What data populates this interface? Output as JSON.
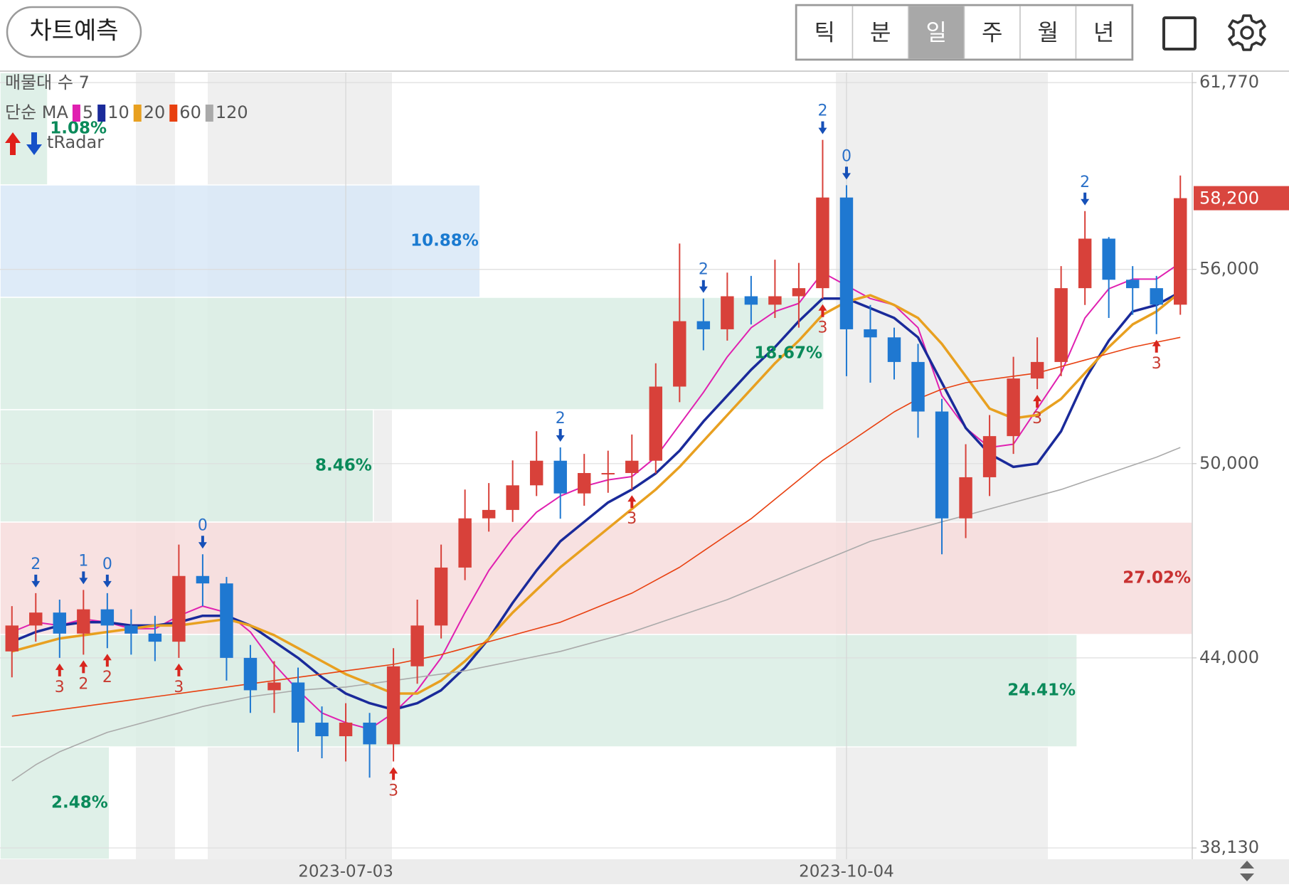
{
  "toolbar": {
    "predict_button": "차트예측",
    "periods": [
      "틱",
      "분",
      "일",
      "주",
      "월",
      "년"
    ],
    "selected": 2
  },
  "chart_data": {
    "type": "candlestick",
    "zone_count_label": "매물대 수 7",
    "ma_label": "단순 MA",
    "indicator_label": "tRadar",
    "categories": [
      null,
      null,
      null,
      null,
      null,
      null,
      null,
      null,
      null,
      null,
      null,
      null,
      null,
      null,
      "2023-07-03",
      null,
      null,
      null,
      null,
      null,
      null,
      null,
      null,
      null,
      null,
      null,
      null,
      null,
      null,
      null,
      null,
      null,
      null,
      null,
      null,
      "2023-10-04",
      null,
      null,
      null,
      null,
      null,
      null,
      null,
      null,
      null,
      null,
      null,
      null,
      null,
      null
    ],
    "open": [
      44200,
      45000,
      45400,
      44750,
      45500,
      45000,
      44750,
      44500,
      46530,
      46300,
      44000,
      43000,
      43240,
      42000,
      41580,
      42000,
      41330,
      43740,
      45000,
      46790,
      48310,
      48570,
      49330,
      50090,
      49080,
      49710,
      49710,
      50090,
      52380,
      54400,
      54150,
      55170,
      54910,
      55170,
      55420,
      58220,
      54150,
      53900,
      53140,
      51610,
      48310,
      49580,
      50850,
      52630,
      53140,
      55420,
      56950,
      55680,
      55420,
      54910
    ],
    "high": [
      45600,
      46000,
      45800,
      46100,
      46000,
      45500,
      45300,
      47500,
      47200,
      46500,
      44400,
      43900,
      43700,
      42500,
      42600,
      42300,
      44300,
      45800,
      47500,
      49200,
      49400,
      50100,
      51000,
      50500,
      50300,
      50400,
      50900,
      53100,
      56800,
      55100,
      55900,
      55800,
      56300,
      56200,
      60000,
      58600,
      54900,
      54200,
      53700,
      52000,
      50600,
      51500,
      53300,
      53900,
      56100,
      57800,
      57000,
      56100,
      55800,
      58900
    ],
    "low": [
      43400,
      44500,
      44000,
      44100,
      44300,
      44100,
      43900,
      44000,
      45600,
      43300,
      42300,
      42300,
      41100,
      40900,
      40800,
      40300,
      40800,
      43200,
      44600,
      46400,
      47900,
      48200,
      49000,
      48300,
      48700,
      49100,
      49200,
      49700,
      51900,
      53500,
      53800,
      54300,
      54500,
      54200,
      55100,
      52700,
      52500,
      52600,
      50800,
      47200,
      47700,
      49000,
      50300,
      52300,
      52700,
      54900,
      54500,
      54600,
      54000,
      54600
    ],
    "close": [
      45000,
      45400,
      44750,
      45500,
      45000,
      44750,
      44500,
      46530,
      46300,
      44000,
      43000,
      43240,
      42000,
      41580,
      42000,
      41330,
      43740,
      45000,
      46790,
      48310,
      48570,
      49330,
      50090,
      49080,
      49710,
      49710,
      50090,
      52380,
      54400,
      54150,
      55170,
      54910,
      55170,
      55420,
      58220,
      54150,
      53900,
      53140,
      51610,
      48310,
      49580,
      50850,
      52630,
      53140,
      55420,
      56950,
      55680,
      55420,
      54910,
      58200
    ],
    "up_color": "#d8413a",
    "down_color": "#1f78d1",
    "series": [
      {
        "name": "5",
        "color": "#e020b0",
        "width": 2,
        "values": [
          44800,
          45100,
          45000,
          45200,
          45100,
          44900,
          44900,
          45300,
          45600,
          45400,
          44800,
          43800,
          43000,
          42300,
          42000,
          41800,
          42300,
          43000,
          44000,
          45400,
          46700,
          47700,
          48500,
          49000,
          49300,
          49500,
          49600,
          50200,
          51200,
          52200,
          53300,
          54200,
          54700,
          54950,
          55900,
          55500,
          55100,
          54900,
          54200,
          52100,
          51100,
          50500,
          50600,
          51700,
          52800,
          54500,
          55400,
          55700,
          55700,
          56200
        ]
      },
      {
        "name": "10",
        "color": "#1a2a9a",
        "width": 3.5,
        "values": [
          44500,
          44800,
          45000,
          45100,
          45100,
          45000,
          45000,
          45100,
          45300,
          45300,
          45000,
          44500,
          44000,
          43400,
          42900,
          42600,
          42400,
          42600,
          43000,
          43700,
          44600,
          45700,
          46700,
          47600,
          48200,
          48800,
          49200,
          49700,
          50400,
          51300,
          52100,
          52900,
          53600,
          54400,
          55100,
          55100,
          54800,
          54500,
          53900,
          52500,
          51100,
          50300,
          49900,
          50000,
          51000,
          52600,
          53800,
          54700,
          54900,
          55300
        ]
      },
      {
        "name": "20",
        "color": "#e8a020",
        "width": 3.5,
        "values": [
          44200,
          44400,
          44600,
          44700,
          44800,
          44900,
          45000,
          45000,
          45100,
          45200,
          45000,
          44700,
          44300,
          43900,
          43500,
          43200,
          42900,
          42900,
          43300,
          43900,
          44600,
          45400,
          46100,
          46800,
          47400,
          48000,
          48600,
          49200,
          49900,
          50700,
          51500,
          52300,
          53100,
          53800,
          54600,
          55000,
          55200,
          54900,
          54500,
          53700,
          52700,
          51700,
          51400,
          51500,
          52000,
          52800,
          53600,
          54300,
          54700,
          55300
        ]
      },
      {
        "name": "60",
        "color": "#e84010",
        "width": 1.6,
        "values": [
          42200,
          42300,
          42400,
          42500,
          42600,
          42700,
          42800,
          42900,
          43000,
          43100,
          43200,
          43300,
          43400,
          43500,
          43600,
          43700,
          43800,
          43950,
          44100,
          44300,
          44500,
          44700,
          44900,
          45100,
          45400,
          45700,
          46000,
          46400,
          46800,
          47300,
          47800,
          48300,
          48900,
          49500,
          50100,
          50600,
          51100,
          51600,
          52000,
          52300,
          52500,
          52600,
          52700,
          52800,
          53000,
          53200,
          53400,
          53600,
          53750,
          53900
        ]
      },
      {
        "name": "120",
        "color": "#aaaaaa",
        "width": 1.6,
        "values": [
          40200,
          40700,
          41100,
          41400,
          41700,
          41900,
          42100,
          42300,
          42500,
          42650,
          42800,
          42900,
          43000,
          43050,
          43100,
          43200,
          43300,
          43400,
          43500,
          43600,
          43750,
          43900,
          44050,
          44200,
          44400,
          44600,
          44800,
          45050,
          45300,
          45550,
          45800,
          46100,
          46400,
          46700,
          47000,
          47300,
          47600,
          47800,
          48000,
          48200,
          48400,
          48600,
          48800,
          49000,
          49200,
          49450,
          49700,
          49950,
          50200,
          50500
        ]
      }
    ],
    "zones": {
      "values": [
        1.08,
        10.88,
        18.67,
        8.46,
        27.02,
        24.41,
        2.48
      ],
      "value_labels": [
        "1.08%",
        "10.88%",
        "18.67%",
        "8.46%",
        "27.02%",
        "24.41%",
        "2.48%"
      ],
      "colors": [
        "#d9ede4",
        "#d8e7f7",
        "#d9ede4",
        "#d9ede4",
        "#f7dcdc",
        "#d9ede4",
        "#d9ede4"
      ],
      "label_colors": [
        "#0a8a5a",
        "#1a7ad0",
        "#0a8a5a",
        "#0a8a5a",
        "#c83030",
        "#0a8a5a",
        "#0a8a5a"
      ]
    },
    "sell_signals": [
      null,
      "2",
      null,
      "1",
      "0",
      null,
      null,
      null,
      "0",
      null,
      null,
      null,
      null,
      null,
      null,
      null,
      null,
      null,
      null,
      null,
      null,
      null,
      null,
      "2",
      null,
      null,
      null,
      null,
      null,
      "2",
      null,
      null,
      null,
      null,
      "2",
      "0",
      null,
      null,
      null,
      null,
      null,
      null,
      null,
      null,
      null,
      "2",
      null,
      null,
      null,
      null
    ],
    "buy_signals": [
      null,
      null,
      "3",
      "2",
      "2",
      null,
      null,
      "3",
      null,
      null,
      null,
      null,
      null,
      null,
      null,
      null,
      "3",
      null,
      null,
      null,
      null,
      null,
      null,
      null,
      null,
      null,
      "3",
      null,
      null,
      null,
      null,
      null,
      null,
      null,
      "3",
      null,
      null,
      null,
      null,
      null,
      null,
      null,
      null,
      "3",
      null,
      null,
      null,
      null,
      "3",
      null
    ],
    "signal_colors": {
      "sell": "#1650b8",
      "buy": "#d8261e"
    },
    "current_price": {
      "value": 58200,
      "label": "58,200"
    },
    "current_price_color": "#d9463f",
    "ylim": [
      37780,
      62080
    ],
    "yticks": [
      {
        "value": 38130,
        "label": "38,130"
      },
      {
        "value": 44000,
        "label": "44,000"
      },
      {
        "value": 50000,
        "label": "50,000"
      },
      {
        "value": 56000,
        "label": "56,000"
      },
      {
        "value": 61770,
        "label": "61,770"
      }
    ],
    "grid": true
  }
}
